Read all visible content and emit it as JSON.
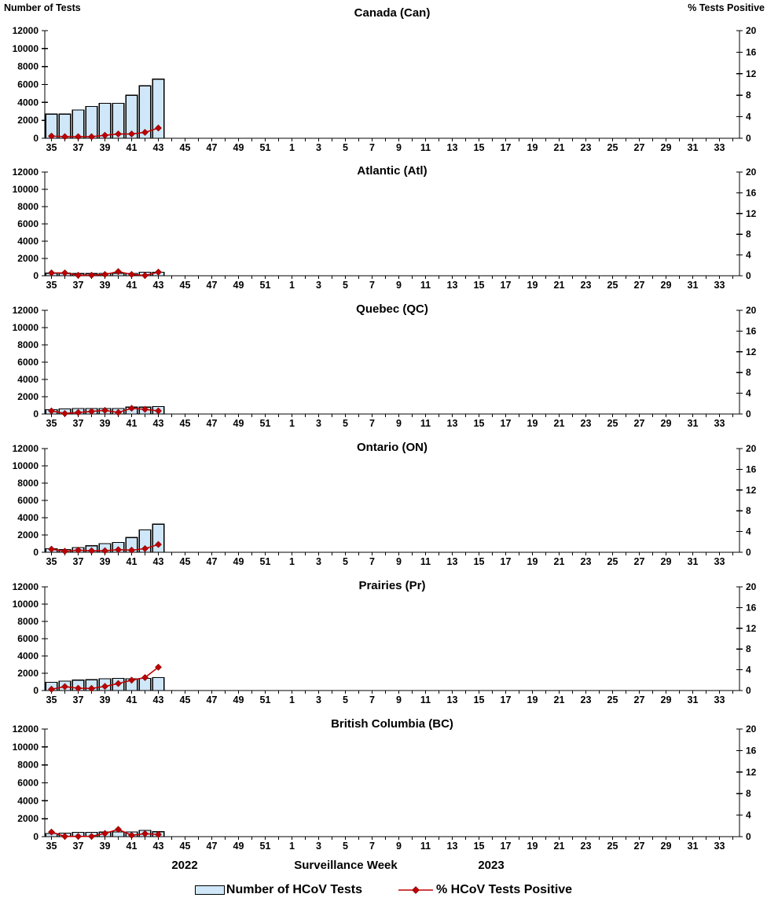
{
  "page": {
    "left_axis_title": "Number of Tests",
    "right_axis_title": "% Tests Positive",
    "x_axis": {
      "year_left": "2022",
      "title": "Surveillance Week",
      "year_right": "2023"
    },
    "legend": [
      {
        "label": "Number of HCoV Tests",
        "swatch": "bar"
      },
      {
        "label": "% HCoV Tests Positive",
        "swatch": "line"
      }
    ],
    "colors": {
      "bar_fill": "#cfe7f8",
      "bar_border": "#000000",
      "line_color": "#c00000",
      "marker_edge": "#7f0000",
      "axis_color": "#000000"
    }
  },
  "week_axis": {
    "categories": [
      35,
      36,
      37,
      38,
      39,
      40,
      41,
      42,
      43,
      44,
      45,
      46,
      47,
      48,
      49,
      50,
      51,
      52,
      1,
      2,
      3,
      4,
      5,
      6,
      7,
      8,
      9,
      10,
      11,
      12,
      13,
      14,
      15,
      16,
      17,
      18,
      19,
      20,
      21,
      22,
      23,
      24,
      25,
      26,
      27,
      28,
      29,
      30,
      31,
      32,
      33,
      34
    ],
    "labeled_ticks": "odd weeks only",
    "left_ylim": [
      0,
      12000
    ],
    "left_tick_step": 2000,
    "right_ylim": [
      0,
      20
    ],
    "right_tick_step": 4,
    "grid": false
  },
  "chart_data": [
    {
      "type": "bar+line",
      "title": "Canada (Can)",
      "xlabel": "Surveillance Week",
      "ylabel_left": "Number of Tests",
      "ylabel_right": "% Tests Positive",
      "weeks": [
        35,
        36,
        37,
        38,
        39,
        40,
        41,
        42,
        43
      ],
      "series": [
        {
          "name": "Number of HCoV Tests",
          "type": "bar",
          "axis": "left",
          "values": [
            2700,
            2700,
            3150,
            3550,
            3900,
            3900,
            4800,
            5850,
            6600
          ]
        },
        {
          "name": "% HCoV Tests Positive",
          "type": "line",
          "axis": "right",
          "values": [
            0.4,
            0.3,
            0.3,
            0.3,
            0.55,
            0.8,
            0.8,
            1.1,
            1.9
          ]
        }
      ]
    },
    {
      "type": "bar+line",
      "title": "Atlantic (Atl)",
      "weeks": [
        35,
        36,
        37,
        38,
        39,
        40,
        41,
        42,
        43
      ],
      "series": [
        {
          "name": "Number of HCoV Tests",
          "type": "bar",
          "axis": "left",
          "values": [
            300,
            300,
            250,
            250,
            280,
            300,
            280,
            420,
            420
          ]
        },
        {
          "name": "% HCoV Tests Positive",
          "type": "line",
          "axis": "right",
          "values": [
            0.55,
            0.55,
            0.1,
            0.1,
            0.25,
            0.8,
            0.25,
            0.05,
            0.7
          ]
        }
      ]
    },
    {
      "type": "bar+line",
      "title": "Quebec (QC)",
      "weeks": [
        35,
        36,
        37,
        38,
        39,
        40,
        41,
        42,
        43
      ],
      "series": [
        {
          "name": "Number of HCoV Tests",
          "type": "bar",
          "axis": "left",
          "values": [
            500,
            600,
            650,
            650,
            650,
            650,
            800,
            800,
            850
          ]
        },
        {
          "name": "% HCoV Tests Positive",
          "type": "line",
          "axis": "right",
          "values": [
            0.6,
            0.1,
            0.3,
            0.5,
            0.7,
            0.3,
            1.1,
            0.9,
            0.6
          ]
        }
      ]
    },
    {
      "type": "bar+line",
      "title": "Ontario (ON)",
      "weeks": [
        35,
        36,
        37,
        38,
        39,
        40,
        41,
        42,
        43
      ],
      "series": [
        {
          "name": "Number of HCoV Tests",
          "type": "bar",
          "axis": "left",
          "values": [
            400,
            330,
            550,
            750,
            1000,
            1150,
            1700,
            2600,
            3250
          ]
        },
        {
          "name": "% HCoV Tests Positive",
          "type": "line",
          "axis": "right",
          "values": [
            0.6,
            0.2,
            0.4,
            0.3,
            0.3,
            0.5,
            0.4,
            0.7,
            1.5
          ]
        }
      ]
    },
    {
      "type": "bar+line",
      "title": "Prairies (Pr)",
      "weeks": [
        35,
        36,
        37,
        38,
        39,
        40,
        41,
        42,
        43
      ],
      "series": [
        {
          "name": "Number of HCoV Tests",
          "type": "bar",
          "axis": "left",
          "values": [
            950,
            1100,
            1200,
            1250,
            1350,
            1400,
            1350,
            1400,
            1500
          ]
        },
        {
          "name": "% HCoV Tests Positive",
          "type": "line",
          "axis": "right",
          "values": [
            0.25,
            0.75,
            0.45,
            0.4,
            0.8,
            1.35,
            2.0,
            2.5,
            4.5
          ]
        }
      ]
    },
    {
      "type": "bar+line",
      "title": "British Columbia (BC)",
      "weeks": [
        35,
        36,
        37,
        38,
        39,
        40,
        41,
        42,
        43
      ],
      "series": [
        {
          "name": "Number of HCoV Tests",
          "type": "bar",
          "axis": "left",
          "values": [
            350,
            400,
            480,
            480,
            500,
            530,
            530,
            700,
            550
          ]
        },
        {
          "name": "% HCoV Tests Positive",
          "type": "line",
          "axis": "right",
          "values": [
            0.85,
            0.05,
            0.05,
            0.05,
            0.6,
            1.35,
            0.25,
            0.55,
            0.4
          ]
        }
      ]
    }
  ]
}
